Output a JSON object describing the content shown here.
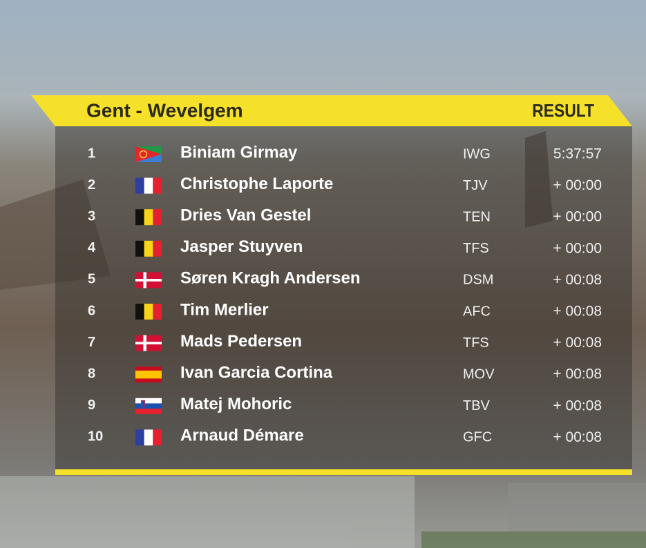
{
  "header": {
    "title": "Gent - Wevelgem",
    "label": "RESULT"
  },
  "table": {
    "rows": [
      [
        1,
        "Biniam Girmay",
        "IWG",
        "5:37:57"
      ],
      [
        2,
        "Christophe Laporte",
        "TJV",
        "+ 00:00"
      ],
      [
        3,
        "Dries Van Gestel",
        "TEN",
        "+ 00:00"
      ],
      [
        4,
        "Jasper Stuyven",
        "TFS",
        "+ 00:00"
      ],
      [
        5,
        "Søren Kragh Andersen",
        "DSM",
        "+ 00:08"
      ],
      [
        6,
        "Tim Merlier",
        "AFC",
        "+ 00:08"
      ],
      [
        7,
        "Mads Pedersen",
        "TFS",
        "+ 00:08"
      ],
      [
        8,
        "Ivan Garcia Cortina",
        "MOV",
        "+ 00:08"
      ],
      [
        9,
        "Matej Mohoric",
        "TBV",
        "+ 00:08"
      ],
      [
        10,
        "Arnaud Démare",
        "GFC",
        "+ 00:08"
      ]
    ]
  }
}
